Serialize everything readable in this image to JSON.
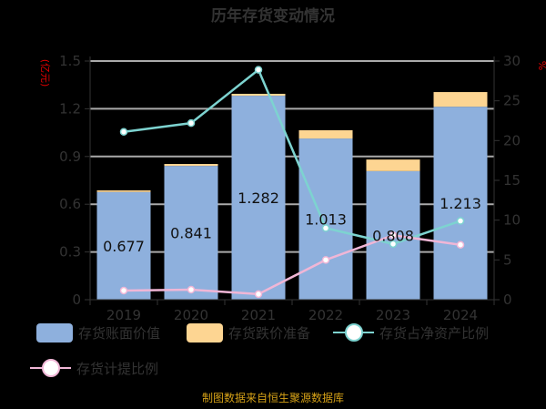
{
  "title": "历年存货变动情况",
  "source": "制图数据来自恒生聚源数据库",
  "colors": {
    "book_value": "#8eb0dd",
    "provision": "#fdd592",
    "ratio_net_assets": "#7dd3d0",
    "provision_ratio": "#f0b6d6",
    "unit_label": "#e00000",
    "source_text": "#d4a017",
    "text": "#333333",
    "grid": "#aaaaaa"
  },
  "chart_data": {
    "type": "bar",
    "title": "历年存货变动情况",
    "categories": [
      "2019",
      "2020",
      "2021",
      "2022",
      "2023",
      "2024"
    ],
    "series": [
      {
        "name": "存货账面价值",
        "type": "bar",
        "stack": "inventory",
        "axis": "left",
        "values": [
          0.677,
          0.841,
          1.282,
          1.013,
          0.808,
          1.213
        ]
      },
      {
        "name": "存货跌价准备",
        "type": "bar",
        "stack": "inventory",
        "axis": "left",
        "values": [
          0.01,
          0.012,
          0.012,
          0.052,
          0.073,
          0.092
        ]
      },
      {
        "name": "存货占净资产比例",
        "type": "line",
        "axis": "right",
        "values": [
          21.1,
          22.2,
          28.9,
          9.0,
          7.0,
          9.9
        ]
      },
      {
        "name": "存货计提比例",
        "type": "line",
        "axis": "right",
        "values": [
          1.15,
          1.26,
          0.7,
          5.0,
          8.1,
          6.9
        ]
      }
    ],
    "data_labels": [
      "0.677",
      "0.841",
      "1.282",
      "1.013",
      "0.808",
      "1.213"
    ],
    "left_axis": {
      "label": "(亿元)",
      "ylim": [
        0,
        1.5
      ],
      "ticks": [
        "0",
        "0.3",
        "0.6",
        "0.9",
        "1.2",
        "1.5"
      ]
    },
    "right_axis": {
      "label": "%",
      "ylim": [
        0,
        30
      ],
      "ticks": [
        "0",
        "5",
        "10",
        "15",
        "20",
        "25",
        "30"
      ]
    },
    "grid": true,
    "legend_position": "bottom"
  },
  "legend": [
    {
      "label": "存货账面价值",
      "kind": "rect",
      "color": "#8eb0dd"
    },
    {
      "label": "存货跌价准备",
      "kind": "rect",
      "color": "#fdd592"
    },
    {
      "label": "存货占净资产比例",
      "kind": "line",
      "color": "#7dd3d0"
    },
    {
      "label": "存货计提比例",
      "kind": "line",
      "color": "#f0b6d6"
    }
  ]
}
